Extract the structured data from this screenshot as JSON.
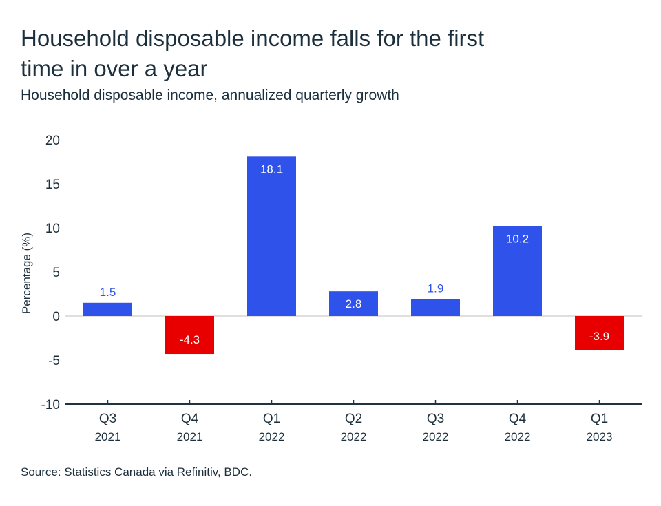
{
  "chart_data": {
    "type": "bar",
    "title": "Household disposable income falls for the first time in over a year",
    "subtitle": "Household disposable income, annualized quarterly growth",
    "ylabel": "Percentage (%)",
    "xlabel": "",
    "ylim": [
      -10,
      20
    ],
    "yticks": [
      20,
      15,
      10,
      5,
      0,
      -5,
      -10
    ],
    "categories": [
      {
        "quarter": "Q3",
        "year": "2021"
      },
      {
        "quarter": "Q4",
        "year": "2021"
      },
      {
        "quarter": "Q1",
        "year": "2022"
      },
      {
        "quarter": "Q2",
        "year": "2022"
      },
      {
        "quarter": "Q3",
        "year": "2022"
      },
      {
        "quarter": "Q4",
        "year": "2022"
      },
      {
        "quarter": "Q1",
        "year": "2023"
      }
    ],
    "values": [
      1.5,
      -4.3,
      18.1,
      2.8,
      1.9,
      10.2,
      -3.9
    ],
    "data_labels": [
      "1.5",
      "-4.3",
      "18.1",
      "2.8",
      "1.9",
      "10.2",
      "-3.9"
    ],
    "grid": false,
    "legend": "none",
    "colors": {
      "positive": "#2f52ea",
      "negative": "#e80000",
      "axis": "#1f3340",
      "zero_line": "#d9d4d0"
    }
  },
  "source": "Source: Statistics Canada via Refinitiv, BDC."
}
